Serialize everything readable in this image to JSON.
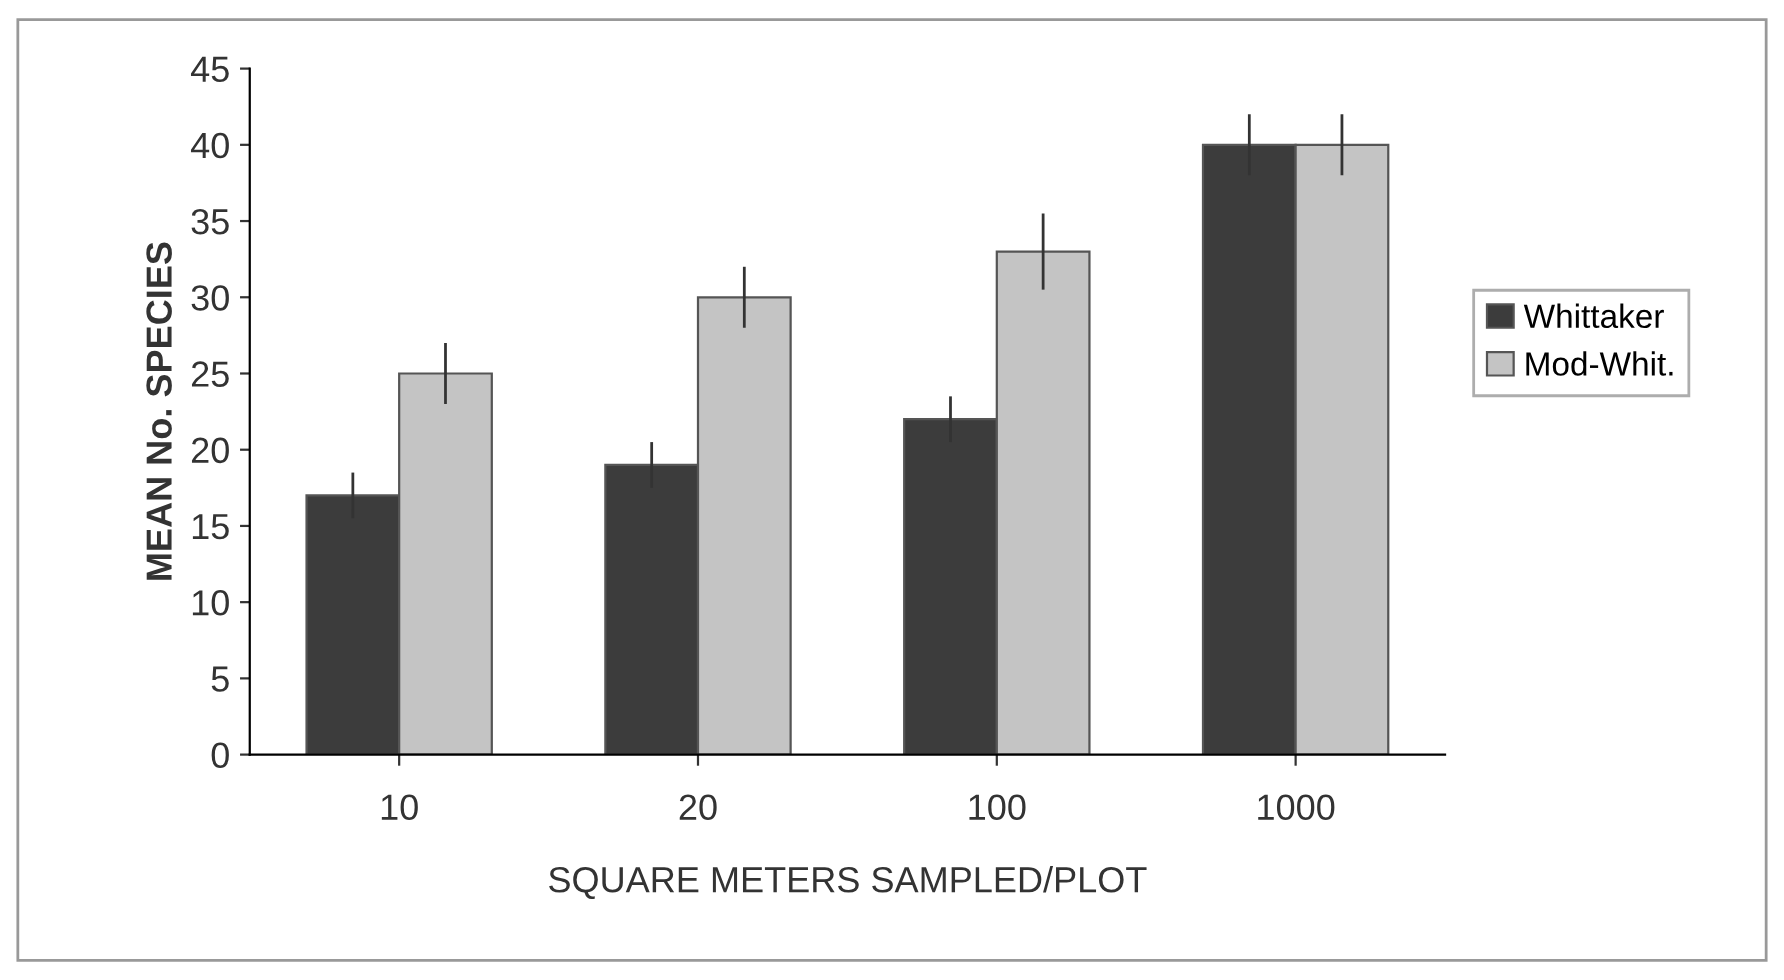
{
  "chart_data": {
    "type": "bar",
    "xlabel": "SQUARE METERS SAMPLED/PLOT",
    "ylabel": "MEAN No. SPECIES",
    "categories": [
      "10",
      "20",
      "100",
      "1000"
    ],
    "series": [
      {
        "name": "Whittaker",
        "color": "#3c3c3c",
        "values": [
          17,
          19,
          22,
          40
        ],
        "errors": [
          1.5,
          1.5,
          1.5,
          2
        ]
      },
      {
        "name": "Mod-Whit.",
        "color": "#c4c4c4",
        "values": [
          25,
          30,
          33,
          40
        ],
        "errors": [
          2,
          2,
          2.5,
          2
        ]
      }
    ],
    "ylim": [
      0,
      45
    ],
    "yticks": [
      0,
      5,
      10,
      15,
      20,
      25,
      30,
      35,
      40,
      45
    ],
    "grid": false,
    "legend": "right"
  }
}
